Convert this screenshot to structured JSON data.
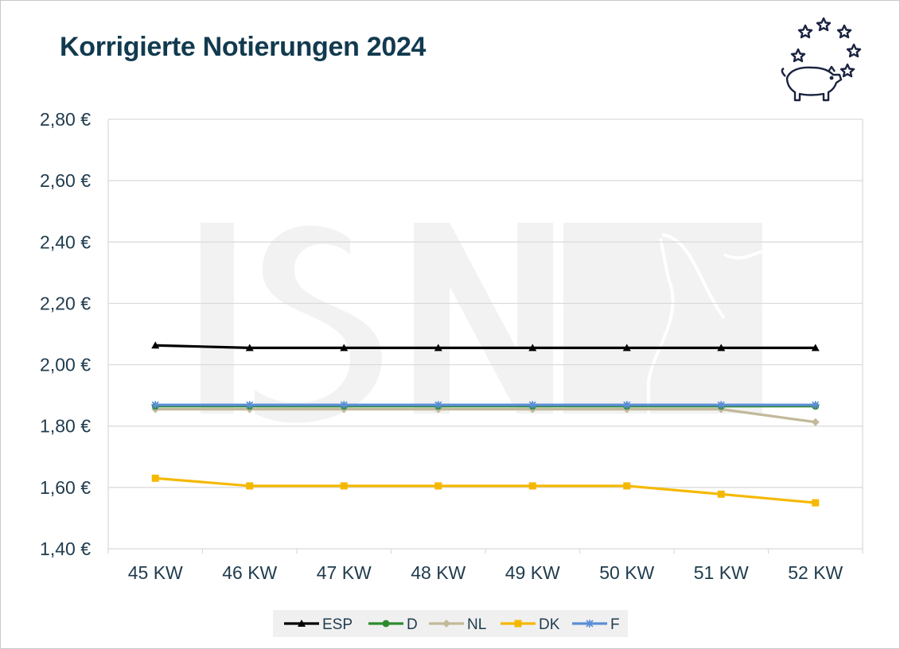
{
  "chart_data": {
    "type": "line",
    "title": "Korrigierte Notierungen 2024",
    "xlabel": "",
    "ylabel": "",
    "categories": [
      "45 KW",
      "46 KW",
      "47 KW",
      "48 KW",
      "49 KW",
      "50 KW",
      "51 KW",
      "52 KW"
    ],
    "ylim": [
      1.4,
      2.8
    ],
    "yticks": [
      1.4,
      1.6,
      1.8,
      2.0,
      2.2,
      2.4,
      2.6,
      2.8
    ],
    "ytick_labels": [
      "1,40 €",
      "1,60 €",
      "1,80 €",
      "2,00 €",
      "2,20 €",
      "2,40 €",
      "2,60 €",
      "2,80 €"
    ],
    "grid": "horizontal",
    "legend_position": "bottom",
    "series": [
      {
        "name": "ESP",
        "color": "#000000",
        "marker": "triangle",
        "values": [
          2.063,
          2.055,
          2.055,
          2.055,
          2.055,
          2.055,
          2.055,
          2.055
        ]
      },
      {
        "name": "D",
        "color": "#2e8b2e",
        "marker": "circle",
        "values": [
          1.865,
          1.865,
          1.865,
          1.865,
          1.865,
          1.865,
          1.865,
          1.865
        ]
      },
      {
        "name": "NL",
        "color": "#c2b99a",
        "marker": "diamond",
        "values": [
          1.855,
          1.855,
          1.855,
          1.855,
          1.855,
          1.855,
          1.855,
          1.813
        ]
      },
      {
        "name": "DK",
        "color": "#f5b800",
        "marker": "square",
        "values": [
          1.63,
          1.605,
          1.605,
          1.605,
          1.605,
          1.605,
          1.578,
          1.55
        ]
      },
      {
        "name": "F",
        "color": "#5b8fd6",
        "marker": "star",
        "values": [
          1.869,
          1.869,
          1.869,
          1.869,
          1.869,
          1.869,
          1.869,
          1.869
        ]
      }
    ]
  },
  "colors": {
    "title": "#123a4f",
    "axis_text": "#1f3b4d",
    "grid": "#d9d9d9",
    "watermark": "#f2f2f2",
    "logo": "#1a2340"
  },
  "icons": {
    "logo": "pig-with-stars-icon",
    "watermark": "isn-watermark-icon"
  }
}
